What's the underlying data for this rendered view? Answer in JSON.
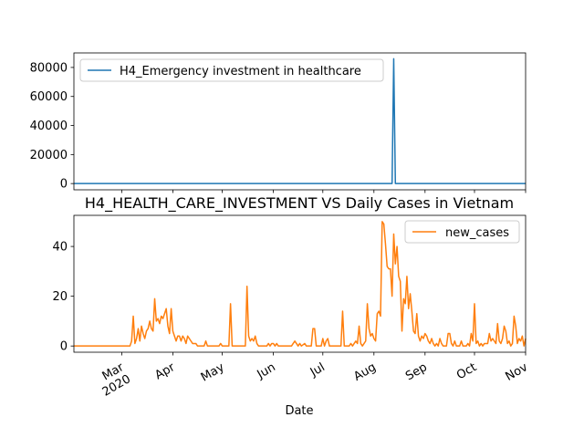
{
  "chart_data": [
    {
      "type": "line",
      "title": "",
      "xlabel": "",
      "ylabel": "",
      "ylim": [
        -4300,
        90000
      ],
      "yticks": [
        0,
        20000,
        40000,
        60000,
        80000
      ],
      "legend": "top-left",
      "series": [
        {
          "name": "H4_Emergency investment in healthcare",
          "color": "#1f77b4",
          "points": [
            [
              "2020-02-01",
              0
            ],
            [
              "2020-08-12",
              0
            ],
            [
              "2020-08-13",
              86000
            ],
            [
              "2020-08-14",
              0
            ],
            [
              "2020-11-01",
              0
            ]
          ]
        }
      ]
    },
    {
      "type": "line",
      "title": "H4_HEALTH_CARE_INVESTMENT VS Daily Cases in Vietnam",
      "xlabel": "Date",
      "ylabel": "",
      "ylim": [
        -2.5,
        52.5
      ],
      "yticks": [
        0,
        20,
        40
      ],
      "legend": "top-right",
      "x_ticks": [
        {
          "date": "2020-03-01",
          "label": "Mar",
          "sub": "2020"
        },
        {
          "date": "2020-04-01",
          "label": "Apr",
          "sub": ""
        },
        {
          "date": "2020-05-01",
          "label": "May",
          "sub": ""
        },
        {
          "date": "2020-06-01",
          "label": "Jun",
          "sub": ""
        },
        {
          "date": "2020-07-01",
          "label": "Jul",
          "sub": ""
        },
        {
          "date": "2020-08-01",
          "label": "Aug",
          "sub": ""
        },
        {
          "date": "2020-09-01",
          "label": "Sep",
          "sub": ""
        },
        {
          "date": "2020-10-01",
          "label": "Oct",
          "sub": ""
        },
        {
          "date": "2020-11-01",
          "label": "Nov",
          "sub": ""
        }
      ],
      "series": [
        {
          "name": "new_cases",
          "color": "#ff7f0e",
          "points": [
            [
              "2020-02-01",
              0
            ],
            [
              "2020-03-06",
              0
            ],
            [
              "2020-03-07",
              2
            ],
            [
              "2020-03-08",
              12
            ],
            [
              "2020-03-09",
              1
            ],
            [
              "2020-03-10",
              3
            ],
            [
              "2020-03-11",
              7
            ],
            [
              "2020-03-12",
              2
            ],
            [
              "2020-03-13",
              8
            ],
            [
              "2020-03-14",
              5
            ],
            [
              "2020-03-15",
              3
            ],
            [
              "2020-03-16",
              6
            ],
            [
              "2020-03-17",
              7
            ],
            [
              "2020-03-18",
              10
            ],
            [
              "2020-03-19",
              7
            ],
            [
              "2020-03-20",
              6
            ],
            [
              "2020-03-21",
              19
            ],
            [
              "2020-03-22",
              10
            ],
            [
              "2020-03-23",
              11
            ],
            [
              "2020-03-24",
              9
            ],
            [
              "2020-03-25",
              12
            ],
            [
              "2020-03-26",
              11
            ],
            [
              "2020-03-27",
              13
            ],
            [
              "2020-03-28",
              15
            ],
            [
              "2020-03-29",
              8
            ],
            [
              "2020-03-30",
              5
            ],
            [
              "2020-03-31",
              15
            ],
            [
              "2020-04-01",
              6
            ],
            [
              "2020-04-02",
              4
            ],
            [
              "2020-04-03",
              2
            ],
            [
              "2020-04-04",
              4
            ],
            [
              "2020-04-05",
              4
            ],
            [
              "2020-04-06",
              2
            ],
            [
              "2020-04-07",
              4
            ],
            [
              "2020-04-08",
              3
            ],
            [
              "2020-04-09",
              1
            ],
            [
              "2020-04-10",
              4
            ],
            [
              "2020-04-11",
              3
            ],
            [
              "2020-04-12",
              2
            ],
            [
              "2020-04-13",
              1
            ],
            [
              "2020-04-14",
              1
            ],
            [
              "2020-04-15",
              1
            ],
            [
              "2020-04-16",
              0
            ],
            [
              "2020-04-20",
              0
            ],
            [
              "2020-04-21",
              2
            ],
            [
              "2020-04-22",
              0
            ],
            [
              "2020-04-29",
              0
            ],
            [
              "2020-04-30",
              1
            ],
            [
              "2020-05-01",
              0
            ],
            [
              "2020-05-05",
              0
            ],
            [
              "2020-05-06",
              17
            ],
            [
              "2020-05-07",
              0
            ],
            [
              "2020-05-15",
              0
            ],
            [
              "2020-05-16",
              24
            ],
            [
              "2020-05-17",
              4
            ],
            [
              "2020-05-18",
              2
            ],
            [
              "2020-05-19",
              3
            ],
            [
              "2020-05-20",
              2
            ],
            [
              "2020-05-21",
              4
            ],
            [
              "2020-05-22",
              1
            ],
            [
              "2020-05-23",
              0
            ],
            [
              "2020-05-28",
              0
            ],
            [
              "2020-05-29",
              1
            ],
            [
              "2020-05-30",
              0
            ],
            [
              "2020-05-31",
              1
            ],
            [
              "2020-06-01",
              1
            ],
            [
              "2020-06-02",
              0
            ],
            [
              "2020-06-03",
              1
            ],
            [
              "2020-06-04",
              0
            ],
            [
              "2020-06-12",
              0
            ],
            [
              "2020-06-13",
              1
            ],
            [
              "2020-06-14",
              2
            ],
            [
              "2020-06-15",
              1
            ],
            [
              "2020-06-16",
              0
            ],
            [
              "2020-06-17",
              1
            ],
            [
              "2020-06-18",
              0
            ],
            [
              "2020-06-20",
              1
            ],
            [
              "2020-06-21",
              0
            ],
            [
              "2020-06-24",
              0
            ],
            [
              "2020-06-25",
              7
            ],
            [
              "2020-06-26",
              7
            ],
            [
              "2020-06-27",
              0
            ],
            [
              "2020-06-30",
              0
            ],
            [
              "2020-07-01",
              3
            ],
            [
              "2020-07-02",
              0
            ],
            [
              "2020-07-03",
              2
            ],
            [
              "2020-07-04",
              3
            ],
            [
              "2020-07-05",
              0
            ],
            [
              "2020-07-12",
              0
            ],
            [
              "2020-07-13",
              14
            ],
            [
              "2020-07-14",
              0
            ],
            [
              "2020-07-17",
              0
            ],
            [
              "2020-07-18",
              1
            ],
            [
              "2020-07-19",
              0
            ],
            [
              "2020-07-20",
              1
            ],
            [
              "2020-07-21",
              2
            ],
            [
              "2020-07-22",
              1
            ],
            [
              "2020-07-23",
              8
            ],
            [
              "2020-07-24",
              1
            ],
            [
              "2020-07-25",
              0
            ],
            [
              "2020-07-26",
              1
            ],
            [
              "2020-07-27",
              2
            ],
            [
              "2020-07-28",
              17
            ],
            [
              "2020-07-29",
              7
            ],
            [
              "2020-07-30",
              4
            ],
            [
              "2020-07-31",
              5
            ],
            [
              "2020-08-01",
              3
            ],
            [
              "2020-08-02",
              2
            ],
            [
              "2020-08-03",
              13
            ],
            [
              "2020-08-04",
              14
            ],
            [
              "2020-08-05",
              12
            ],
            [
              "2020-08-06",
              50
            ],
            [
              "2020-08-07",
              49
            ],
            [
              "2020-08-08",
              41
            ],
            [
              "2020-08-09",
              32
            ],
            [
              "2020-08-10",
              31
            ],
            [
              "2020-08-11",
              31
            ],
            [
              "2020-08-12",
              20
            ],
            [
              "2020-08-13",
              45
            ],
            [
              "2020-08-14",
              33
            ],
            [
              "2020-08-15",
              40
            ],
            [
              "2020-08-16",
              28
            ],
            [
              "2020-08-17",
              26
            ],
            [
              "2020-08-18",
              6
            ],
            [
              "2020-08-19",
              19
            ],
            [
              "2020-08-20",
              17
            ],
            [
              "2020-08-21",
              28
            ],
            [
              "2020-08-22",
              15
            ],
            [
              "2020-08-23",
              21
            ],
            [
              "2020-08-24",
              14
            ],
            [
              "2020-08-25",
              6
            ],
            [
              "2020-08-26",
              5
            ],
            [
              "2020-08-27",
              13
            ],
            [
              "2020-08-28",
              4
            ],
            [
              "2020-08-29",
              2
            ],
            [
              "2020-08-30",
              4
            ],
            [
              "2020-08-31",
              3
            ],
            [
              "2020-09-01",
              5
            ],
            [
              "2020-09-02",
              4
            ],
            [
              "2020-09-03",
              2
            ],
            [
              "2020-09-04",
              1
            ],
            [
              "2020-09-05",
              3
            ],
            [
              "2020-09-06",
              1
            ],
            [
              "2020-09-07",
              0
            ],
            [
              "2020-09-08",
              1
            ],
            [
              "2020-09-09",
              0
            ],
            [
              "2020-09-10",
              3
            ],
            [
              "2020-09-11",
              1
            ],
            [
              "2020-09-12",
              0
            ],
            [
              "2020-09-13",
              0
            ],
            [
              "2020-09-14",
              0
            ],
            [
              "2020-09-15",
              5
            ],
            [
              "2020-09-16",
              5
            ],
            [
              "2020-09-17",
              1
            ],
            [
              "2020-09-18",
              0
            ],
            [
              "2020-09-19",
              2
            ],
            [
              "2020-09-20",
              0
            ],
            [
              "2020-09-22",
              0
            ],
            [
              "2020-09-23",
              2
            ],
            [
              "2020-09-24",
              0
            ],
            [
              "2020-09-26",
              0
            ],
            [
              "2020-09-27",
              1
            ],
            [
              "2020-09-28",
              0
            ],
            [
              "2020-09-29",
              5
            ],
            [
              "2020-09-30",
              2
            ],
            [
              "2020-10-01",
              17
            ],
            [
              "2020-10-02",
              1
            ],
            [
              "2020-10-03",
              2
            ],
            [
              "2020-10-04",
              0
            ],
            [
              "2020-10-05",
              1
            ],
            [
              "2020-10-06",
              0
            ],
            [
              "2020-10-07",
              1
            ],
            [
              "2020-10-08",
              1
            ],
            [
              "2020-10-09",
              1
            ],
            [
              "2020-10-10",
              5
            ],
            [
              "2020-10-11",
              2
            ],
            [
              "2020-10-12",
              3
            ],
            [
              "2020-10-13",
              2
            ],
            [
              "2020-10-14",
              1
            ],
            [
              "2020-10-15",
              9
            ],
            [
              "2020-10-16",
              2
            ],
            [
              "2020-10-17",
              1
            ],
            [
              "2020-10-18",
              3
            ],
            [
              "2020-10-19",
              8
            ],
            [
              "2020-10-20",
              6
            ],
            [
              "2020-10-21",
              1
            ],
            [
              "2020-10-22",
              2
            ],
            [
              "2020-10-23",
              0
            ],
            [
              "2020-10-24",
              1
            ],
            [
              "2020-10-25",
              12
            ],
            [
              "2020-10-26",
              8
            ],
            [
              "2020-10-27",
              1
            ],
            [
              "2020-10-28",
              3
            ],
            [
              "2020-10-29",
              2
            ],
            [
              "2020-10-30",
              4
            ],
            [
              "2020-10-31",
              0
            ],
            [
              "2020-11-01",
              3
            ]
          ]
        }
      ]
    }
  ]
}
